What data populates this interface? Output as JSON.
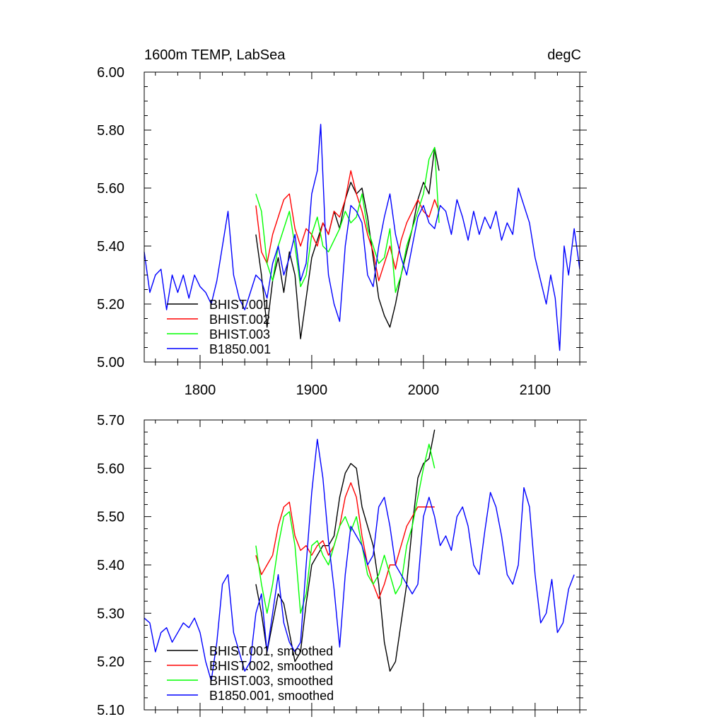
{
  "chart_data": [
    {
      "type": "line",
      "title": "1600m TEMP, LabSea",
      "units": "degC",
      "xlim": [
        1750,
        2140
      ],
      "ylim": [
        5.0,
        6.0
      ],
      "xticks": [
        1800,
        1900,
        2000,
        2100
      ],
      "xtick_labels": [
        "1800",
        "1900",
        "2000",
        "2100"
      ],
      "yticks": [
        5.0,
        5.2,
        5.4,
        5.6,
        5.8,
        6.0
      ],
      "ytick_labels": [
        "5.00",
        "5.20",
        "5.40",
        "5.60",
        "5.80",
        "6.00"
      ],
      "legend": "bottom-left",
      "grid": false,
      "series": [
        {
          "name": "BHIST.001",
          "color": "#000000",
          "x": [
            1850,
            1855,
            1860,
            1865,
            1870,
            1875,
            1880,
            1885,
            1890,
            1895,
            1900,
            1905,
            1910,
            1915,
            1920,
            1925,
            1930,
            1935,
            1940,
            1945,
            1950,
            1955,
            1960,
            1965,
            1970,
            1975,
            1980,
            1985,
            1990,
            1995,
            2000,
            2005,
            2010,
            2014
          ],
          "y": [
            5.44,
            5.3,
            5.12,
            5.28,
            5.36,
            5.24,
            5.38,
            5.3,
            5.08,
            5.22,
            5.36,
            5.42,
            5.48,
            5.44,
            5.52,
            5.46,
            5.56,
            5.62,
            5.58,
            5.6,
            5.5,
            5.36,
            5.22,
            5.16,
            5.12,
            5.2,
            5.3,
            5.38,
            5.46,
            5.56,
            5.62,
            5.58,
            5.74,
            5.66
          ]
        },
        {
          "name": "BHIST.002",
          "color": "#ff0000",
          "x": [
            1850,
            1855,
            1860,
            1865,
            1870,
            1875,
            1880,
            1885,
            1890,
            1895,
            1900,
            1905,
            1910,
            1915,
            1920,
            1925,
            1930,
            1935,
            1940,
            1945,
            1950,
            1955,
            1960,
            1965,
            1970,
            1975,
            1980,
            1985,
            1990,
            1995,
            2000,
            2005,
            2010,
            2014
          ],
          "y": [
            5.54,
            5.38,
            5.34,
            5.44,
            5.5,
            5.56,
            5.58,
            5.46,
            5.4,
            5.46,
            5.44,
            5.4,
            5.48,
            5.44,
            5.52,
            5.5,
            5.56,
            5.66,
            5.58,
            5.52,
            5.44,
            5.38,
            5.28,
            5.34,
            5.4,
            5.32,
            5.42,
            5.48,
            5.52,
            5.56,
            5.52,
            5.5,
            5.56,
            5.52
          ]
        },
        {
          "name": "BHIST.003",
          "color": "#00ff00",
          "x": [
            1850,
            1855,
            1860,
            1865,
            1870,
            1875,
            1880,
            1885,
            1890,
            1895,
            1900,
            1905,
            1910,
            1915,
            1920,
            1925,
            1930,
            1935,
            1940,
            1945,
            1950,
            1955,
            1960,
            1965,
            1970,
            1975,
            1980,
            1985,
            1990,
            1995,
            2000,
            2005,
            2010,
            2014
          ],
          "y": [
            5.58,
            5.52,
            5.34,
            5.28,
            5.4,
            5.46,
            5.52,
            5.4,
            5.26,
            5.3,
            5.44,
            5.5,
            5.4,
            5.38,
            5.42,
            5.46,
            5.52,
            5.48,
            5.5,
            5.58,
            5.46,
            5.4,
            5.34,
            5.36,
            5.46,
            5.24,
            5.3,
            5.4,
            5.46,
            5.52,
            5.58,
            5.7,
            5.74,
            5.48
          ]
        },
        {
          "name": "B1850.001",
          "color": "#0000ff",
          "x": [
            1750,
            1755,
            1760,
            1765,
            1770,
            1775,
            1780,
            1785,
            1790,
            1795,
            1800,
            1805,
            1810,
            1815,
            1820,
            1825,
            1830,
            1835,
            1840,
            1845,
            1850,
            1855,
            1860,
            1865,
            1870,
            1875,
            1880,
            1885,
            1890,
            1895,
            1900,
            1905,
            1908,
            1912,
            1915,
            1920,
            1925,
            1930,
            1935,
            1940,
            1945,
            1950,
            1955,
            1960,
            1965,
            1970,
            1975,
            1980,
            1985,
            1990,
            1995,
            2000,
            2005,
            2010,
            2015,
            2020,
            2025,
            2030,
            2035,
            2040,
            2045,
            2050,
            2055,
            2060,
            2065,
            2070,
            2075,
            2080,
            2085,
            2090,
            2095,
            2100,
            2105,
            2110,
            2114,
            2118,
            2122,
            2126,
            2130,
            2135,
            2140
          ],
          "y": [
            5.38,
            5.24,
            5.3,
            5.32,
            5.18,
            5.3,
            5.24,
            5.3,
            5.22,
            5.3,
            5.26,
            5.24,
            5.2,
            5.28,
            5.4,
            5.52,
            5.3,
            5.22,
            5.18,
            5.24,
            5.3,
            5.28,
            5.22,
            5.34,
            5.4,
            5.3,
            5.36,
            5.44,
            5.28,
            5.34,
            5.58,
            5.66,
            5.82,
            5.46,
            5.3,
            5.2,
            5.14,
            5.4,
            5.54,
            5.52,
            5.48,
            5.3,
            5.26,
            5.4,
            5.5,
            5.58,
            5.44,
            5.36,
            5.3,
            5.4,
            5.5,
            5.54,
            5.48,
            5.46,
            5.54,
            5.52,
            5.44,
            5.56,
            5.5,
            5.42,
            5.52,
            5.44,
            5.5,
            5.46,
            5.52,
            5.42,
            5.48,
            5.44,
            5.6,
            5.54,
            5.48,
            5.36,
            5.28,
            5.2,
            5.3,
            5.22,
            5.04,
            5.4,
            5.3,
            5.46,
            5.32
          ]
        }
      ]
    },
    {
      "type": "line",
      "title": "",
      "units": "",
      "xlim": [
        1750,
        2140
      ],
      "ylim": [
        5.1,
        5.7
      ],
      "xticks": [
        1800,
        1900,
        2000,
        2100
      ],
      "xtick_labels": [],
      "yticks": [
        5.1,
        5.2,
        5.3,
        5.4,
        5.5,
        5.6,
        5.7
      ],
      "ytick_labels": [
        "5.10",
        "5.20",
        "5.30",
        "5.40",
        "5.50",
        "5.60",
        "5.70"
      ],
      "legend": "bottom-left",
      "grid": false,
      "series": [
        {
          "name": "BHIST.001, smoothed",
          "color": "#000000",
          "x": [
            1850,
            1855,
            1860,
            1865,
            1870,
            1875,
            1880,
            1885,
            1890,
            1895,
            1900,
            1905,
            1910,
            1915,
            1920,
            1925,
            1930,
            1935,
            1940,
            1945,
            1950,
            1955,
            1960,
            1965,
            1970,
            1975,
            1980,
            1985,
            1990,
            1995,
            2000,
            2005,
            2010
          ],
          "y": [
            5.36,
            5.3,
            5.22,
            5.28,
            5.34,
            5.32,
            5.26,
            5.2,
            5.22,
            5.32,
            5.4,
            5.42,
            5.44,
            5.44,
            5.46,
            5.54,
            5.59,
            5.61,
            5.6,
            5.52,
            5.48,
            5.44,
            5.36,
            5.24,
            5.18,
            5.2,
            5.28,
            5.36,
            5.48,
            5.58,
            5.61,
            5.62,
            5.68
          ]
        },
        {
          "name": "BHIST.002, smoothed",
          "color": "#ff0000",
          "x": [
            1850,
            1855,
            1860,
            1865,
            1870,
            1875,
            1880,
            1885,
            1890,
            1895,
            1900,
            1905,
            1910,
            1915,
            1920,
            1925,
            1930,
            1935,
            1940,
            1945,
            1950,
            1955,
            1960,
            1965,
            1970,
            1975,
            1980,
            1985,
            1990,
            1995,
            2000,
            2005,
            2010
          ],
          "y": [
            5.42,
            5.38,
            5.4,
            5.42,
            5.48,
            5.52,
            5.53,
            5.46,
            5.43,
            5.44,
            5.42,
            5.44,
            5.45,
            5.42,
            5.44,
            5.48,
            5.54,
            5.57,
            5.54,
            5.46,
            5.4,
            5.36,
            5.33,
            5.36,
            5.4,
            5.4,
            5.44,
            5.48,
            5.5,
            5.52,
            5.52,
            5.52,
            5.52
          ]
        },
        {
          "name": "BHIST.003, smoothed",
          "color": "#00ff00",
          "x": [
            1850,
            1855,
            1860,
            1865,
            1870,
            1875,
            1880,
            1885,
            1890,
            1895,
            1900,
            1905,
            1910,
            1915,
            1920,
            1925,
            1930,
            1935,
            1940,
            1945,
            1950,
            1955,
            1960,
            1965,
            1970,
            1975,
            1980,
            1985,
            1990,
            1995,
            2000,
            2005,
            2010
          ],
          "y": [
            5.44,
            5.36,
            5.3,
            5.36,
            5.44,
            5.5,
            5.51,
            5.44,
            5.3,
            5.34,
            5.44,
            5.45,
            5.42,
            5.4,
            5.44,
            5.48,
            5.5,
            5.47,
            5.5,
            5.44,
            5.38,
            5.36,
            5.38,
            5.42,
            5.38,
            5.34,
            5.36,
            5.44,
            5.48,
            5.54,
            5.6,
            5.65,
            5.6
          ]
        },
        {
          "name": "B1850.001, smoothed",
          "color": "#0000ff",
          "x": [
            1750,
            1755,
            1760,
            1765,
            1770,
            1775,
            1780,
            1785,
            1790,
            1795,
            1800,
            1805,
            1810,
            1815,
            1820,
            1825,
            1830,
            1835,
            1840,
            1845,
            1850,
            1855,
            1860,
            1865,
            1870,
            1875,
            1880,
            1885,
            1890,
            1895,
            1900,
            1905,
            1910,
            1915,
            1920,
            1925,
            1930,
            1935,
            1940,
            1945,
            1950,
            1955,
            1960,
            1965,
            1970,
            1975,
            1980,
            1985,
            1990,
            1995,
            2000,
            2005,
            2010,
            2015,
            2020,
            2025,
            2030,
            2035,
            2040,
            2045,
            2050,
            2055,
            2060,
            2065,
            2070,
            2075,
            2080,
            2085,
            2090,
            2095,
            2100,
            2105,
            2110,
            2115,
            2120,
            2125,
            2130,
            2135
          ],
          "y": [
            5.29,
            5.28,
            5.22,
            5.26,
            5.27,
            5.24,
            5.26,
            5.28,
            5.27,
            5.29,
            5.26,
            5.2,
            5.16,
            5.24,
            5.36,
            5.38,
            5.26,
            5.22,
            5.18,
            5.2,
            5.3,
            5.34,
            5.22,
            5.3,
            5.38,
            5.28,
            5.24,
            5.22,
            5.24,
            5.4,
            5.55,
            5.66,
            5.58,
            5.45,
            5.35,
            5.23,
            5.38,
            5.48,
            5.46,
            5.44,
            5.4,
            5.42,
            5.52,
            5.54,
            5.48,
            5.4,
            5.38,
            5.36,
            5.34,
            5.36,
            5.5,
            5.54,
            5.5,
            5.44,
            5.46,
            5.43,
            5.5,
            5.52,
            5.48,
            5.4,
            5.38,
            5.47,
            5.55,
            5.52,
            5.46,
            5.38,
            5.36,
            5.4,
            5.56,
            5.52,
            5.38,
            5.28,
            5.3,
            5.37,
            5.26,
            5.28,
            5.35,
            5.38
          ]
        }
      ]
    }
  ]
}
